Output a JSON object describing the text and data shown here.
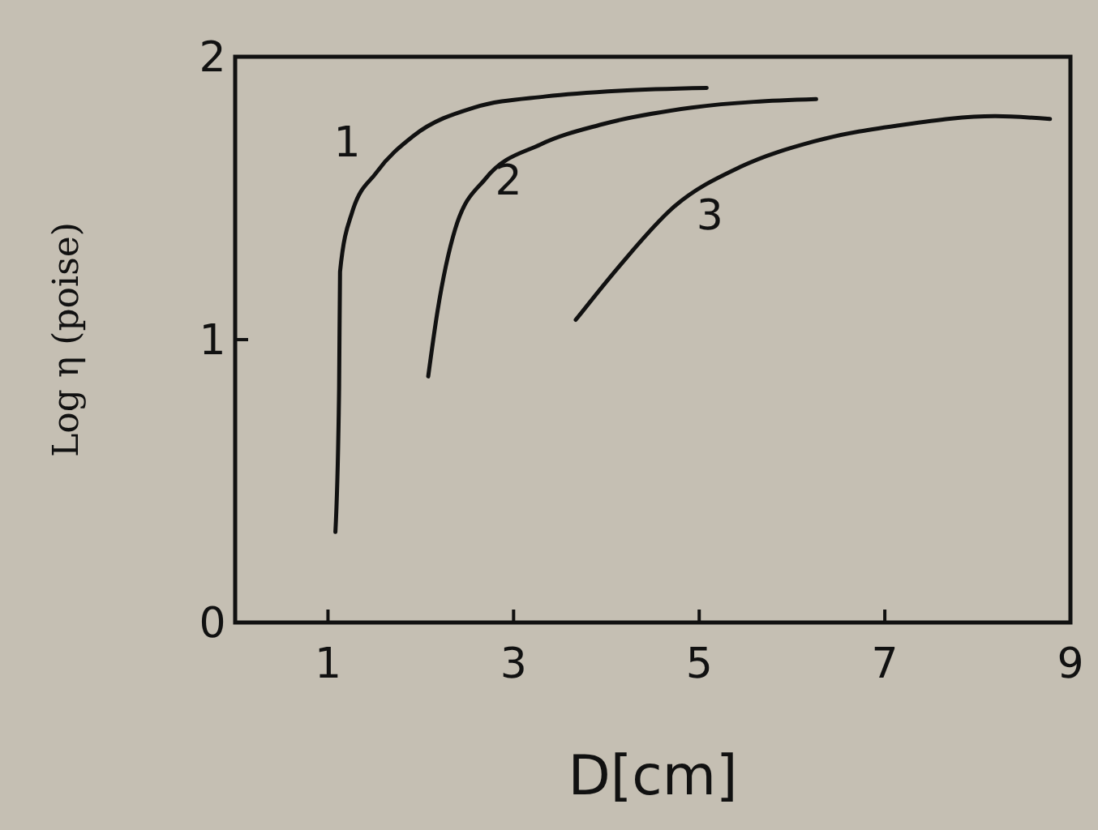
{
  "chart_data": {
    "type": "line",
    "xlabel": "D[cm]",
    "ylabel": "Log η (poise)",
    "xlim": [
      0,
      9
    ],
    "ylim": [
      0,
      2
    ],
    "xticks": [
      1,
      3,
      5,
      7,
      9
    ],
    "yticks": [
      0,
      1,
      2
    ],
    "grid": false,
    "marker": "none",
    "line_style": "solid",
    "series": [
      {
        "name": "1",
        "color": "#111111",
        "x": [
          1.08,
          1.12,
          1.13,
          1.26,
          1.52,
          1.92,
          2.57,
          3.35,
          4.14,
          5.08
        ],
        "values": [
          0.32,
          0.83,
          1.24,
          1.45,
          1.59,
          1.72,
          1.82,
          1.86,
          1.88,
          1.89
        ]
      },
      {
        "name": "2",
        "color": "#111111",
        "x": [
          2.08,
          2.18,
          2.37,
          2.7,
          3.29,
          3.94,
          4.92,
          6.26
        ],
        "values": [
          0.87,
          1.1,
          1.39,
          1.57,
          1.69,
          1.76,
          1.82,
          1.85
        ]
      },
      {
        "name": "3",
        "color": "#111111",
        "x": [
          3.67,
          4.14,
          4.73,
          5.44,
          6.23,
          7.21,
          8.19,
          8.78
        ],
        "values": [
          1.07,
          1.26,
          1.47,
          1.61,
          1.7,
          1.76,
          1.79,
          1.78
        ]
      }
    ]
  }
}
